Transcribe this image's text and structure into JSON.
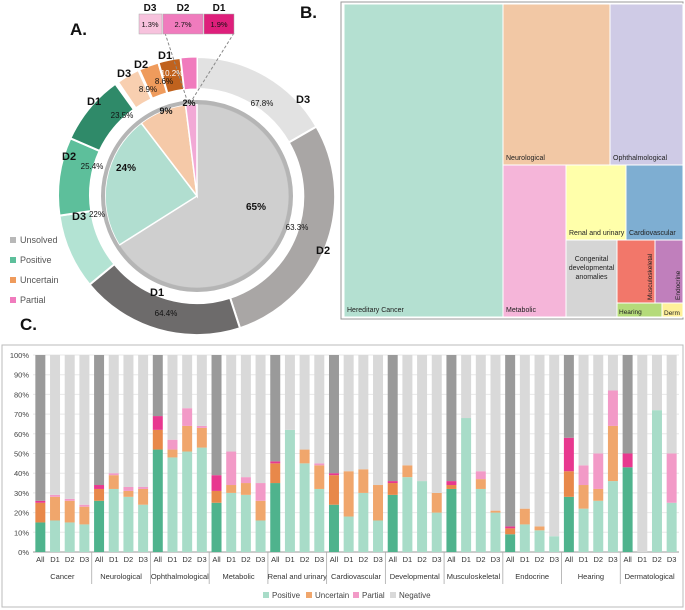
{
  "panel_labels": {
    "a": "A.",
    "b": "B.",
    "c": "C."
  },
  "colors": {
    "unsolved_all": "#c9c9c9",
    "unsolved_d1": "#6d6b6b",
    "unsolved_d2": "#a9a6a5",
    "unsolved_d3": "#e2e2e2",
    "positive_all": "#b1ded0",
    "positive_d1": "#2f8a69",
    "positive_d2": "#5dbf9b",
    "positive_d3": "#b3e3d3",
    "uncertain_all": "#f5c9a8",
    "uncertain_d1": "#c0621e",
    "uncertain_d2": "#ef9b5c",
    "uncertain_d3": "#f8cfb0",
    "partial_all": "#f2a9d6",
    "partial_d1": "#de1f7b",
    "partial_d2": "#f07bbd",
    "partial_d3": "#f7c2dd",
    "bar_positive": "#a8dcc8",
    "bar_uncertain": "#f0a66c",
    "bar_partial": "#f29ac7",
    "bar_negative": "#d9d9d9",
    "bar_all_positive": "#4fb38d",
    "bar_all_uncertain": "#e8884a",
    "bar_all_partial": "#e8388f",
    "bar_all_negative": "#9a9a9a"
  },
  "chart_data": [
    {
      "type": "pie",
      "title": "A.",
      "legend": [
        "Unsolved",
        "Positive",
        "Uncertain",
        "Partial"
      ],
      "inner_pie": {
        "labels": [
          "Unsolved",
          "Positive",
          "Uncertain",
          "Partial"
        ],
        "values": [
          65,
          24,
          9,
          2
        ],
        "value_labels": [
          "65%",
          "24%",
          "9%",
          "2%"
        ]
      },
      "outer_ring": [
        {
          "category": "Unsolved",
          "group": "D3",
          "value": 67.8,
          "label": "67.8%"
        },
        {
          "category": "Unsolved",
          "group": "D2",
          "value": 63.3,
          "label": "63.3%"
        },
        {
          "category": "Unsolved",
          "group": "D1",
          "value": 64.4,
          "label": "64.4%"
        },
        {
          "category": "Positive",
          "group": "D3",
          "value": 22,
          "label": "22%"
        },
        {
          "category": "Positive",
          "group": "D2",
          "value": 25.4,
          "label": "25.4%"
        },
        {
          "category": "Positive",
          "group": "D1",
          "value": 23.5,
          "label": "23.5%"
        },
        {
          "category": "Uncertain",
          "group": "D3",
          "value": 8.9,
          "label": "8.9%"
        },
        {
          "category": "Uncertain",
          "group": "D2",
          "value": 8.6,
          "label": "8.6%"
        },
        {
          "category": "Uncertain",
          "group": "D1",
          "value": 10.2,
          "label": "10.2%"
        }
      ],
      "partial_callout": [
        {
          "group": "D3",
          "label": "1.3%"
        },
        {
          "group": "D2",
          "label": "2.7%"
        },
        {
          "group": "D1",
          "label": "1.9%"
        }
      ]
    },
    {
      "type": "treemap",
      "title": "B.",
      "labels": [
        "Hereditary Cancer",
        "Neurological",
        "Ophthalmological",
        "Metabolic",
        "Renal and urinary",
        "Cardiovascular",
        "Congenital developmental anomalies",
        "Musculoskeletal",
        "Endocrine",
        "Hearing",
        "Derm"
      ]
    },
    {
      "type": "bar",
      "stacked": true,
      "title": "C.",
      "ylim": [
        0,
        100
      ],
      "yticks": [
        "0%",
        "10%",
        "20%",
        "30%",
        "40%",
        "50%",
        "60%",
        "70%",
        "80%",
        "90%",
        "100%"
      ],
      "series_names": [
        "Positive",
        "Uncertain",
        "Partial",
        "Negative"
      ],
      "subgroups": [
        "All",
        "D1",
        "D2",
        "D3"
      ],
      "groups": [
        {
          "name": "Cancer",
          "bars": [
            [
              15,
              10,
              1
            ],
            [
              16,
              12,
              1
            ],
            [
              15,
              11,
              1
            ],
            [
              14,
              9,
              1
            ]
          ]
        },
        {
          "name": "Neurological",
          "bars": [
            [
              26,
              6,
              2
            ],
            [
              32,
              7,
              1
            ],
            [
              28,
              3,
              2
            ],
            [
              24,
              8,
              1
            ]
          ]
        },
        {
          "name": "Ophthalmological",
          "bars": [
            [
              52,
              10,
              7
            ],
            [
              48,
              4,
              5
            ],
            [
              51,
              13,
              9
            ],
            [
              53,
              10,
              1
            ]
          ]
        },
        {
          "name": "Metabolic",
          "bars": [
            [
              25,
              6,
              8
            ],
            [
              30,
              4,
              17
            ],
            [
              29,
              6,
              3
            ],
            [
              16,
              10,
              9
            ]
          ]
        },
        {
          "name": "Renal and urinary",
          "bars": [
            [
              35,
              10,
              1
            ],
            [
              62,
              0,
              0
            ],
            [
              45,
              7,
              0
            ],
            [
              32,
              12,
              1
            ]
          ]
        },
        {
          "name": "Cardiovascular",
          "bars": [
            [
              24,
              15,
              1
            ],
            [
              18,
              23,
              0
            ],
            [
              30,
              12,
              0
            ],
            [
              16,
              18,
              0
            ]
          ]
        },
        {
          "name": "Developmental",
          "bars": [
            [
              29,
              6,
              1
            ],
            [
              38,
              6,
              0
            ],
            [
              36,
              0,
              0
            ],
            [
              20,
              10,
              0
            ]
          ]
        },
        {
          "name": "Musculoskeletal",
          "bars": [
            [
              32,
              2,
              2
            ],
            [
              68,
              0,
              0
            ],
            [
              32,
              5,
              4
            ],
            [
              20,
              1,
              0
            ]
          ]
        },
        {
          "name": "Endocrine",
          "bars": [
            [
              9,
              3,
              1
            ],
            [
              14,
              8,
              0
            ],
            [
              11,
              2,
              0
            ],
            [
              8,
              0,
              0
            ]
          ]
        },
        {
          "name": "Hearing",
          "bars": [
            [
              28,
              13,
              17
            ],
            [
              22,
              12,
              10
            ],
            [
              26,
              6,
              18
            ],
            [
              36,
              28,
              18
            ]
          ]
        },
        {
          "name": "Dermatological",
          "bars": [
            [
              43,
              0,
              7
            ],
            [
              0,
              0,
              0
            ],
            [
              72,
              0,
              0
            ],
            [
              25,
              0,
              25
            ]
          ]
        }
      ]
    }
  ]
}
